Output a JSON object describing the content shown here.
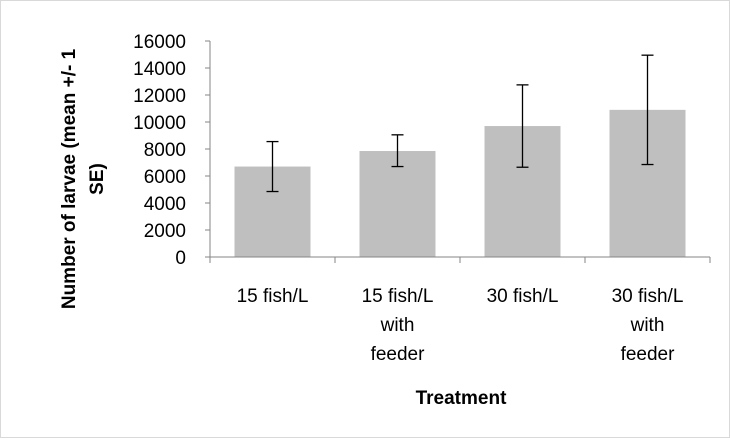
{
  "chart_data": {
    "type": "bar",
    "categories": [
      [
        "15 fish/L"
      ],
      [
        "15 fish/L",
        "with",
        "feeder"
      ],
      [
        "30 fish/L"
      ],
      [
        "30 fish/L",
        "with",
        "feeder"
      ]
    ],
    "values": [
      6700,
      7850,
      9700,
      10900
    ],
    "error_low": [
      4850,
      6700,
      6650,
      6850
    ],
    "error_high": [
      8550,
      9050,
      12750,
      14950
    ],
    "xlabel": "Treatment",
    "ylabel_lines": [
      "Number of larvae (mean +/- 1",
      "SE)"
    ],
    "ylim": [
      0,
      16000
    ],
    "yticks": [
      "0",
      "2000",
      "4000",
      "6000",
      "8000",
      "10000",
      "12000",
      "14000",
      "16000"
    ],
    "grid": false,
    "legend": "none",
    "bar_color": "#bfbfbf",
    "axis_color": "#868686",
    "errorbar_color": "#000000"
  }
}
